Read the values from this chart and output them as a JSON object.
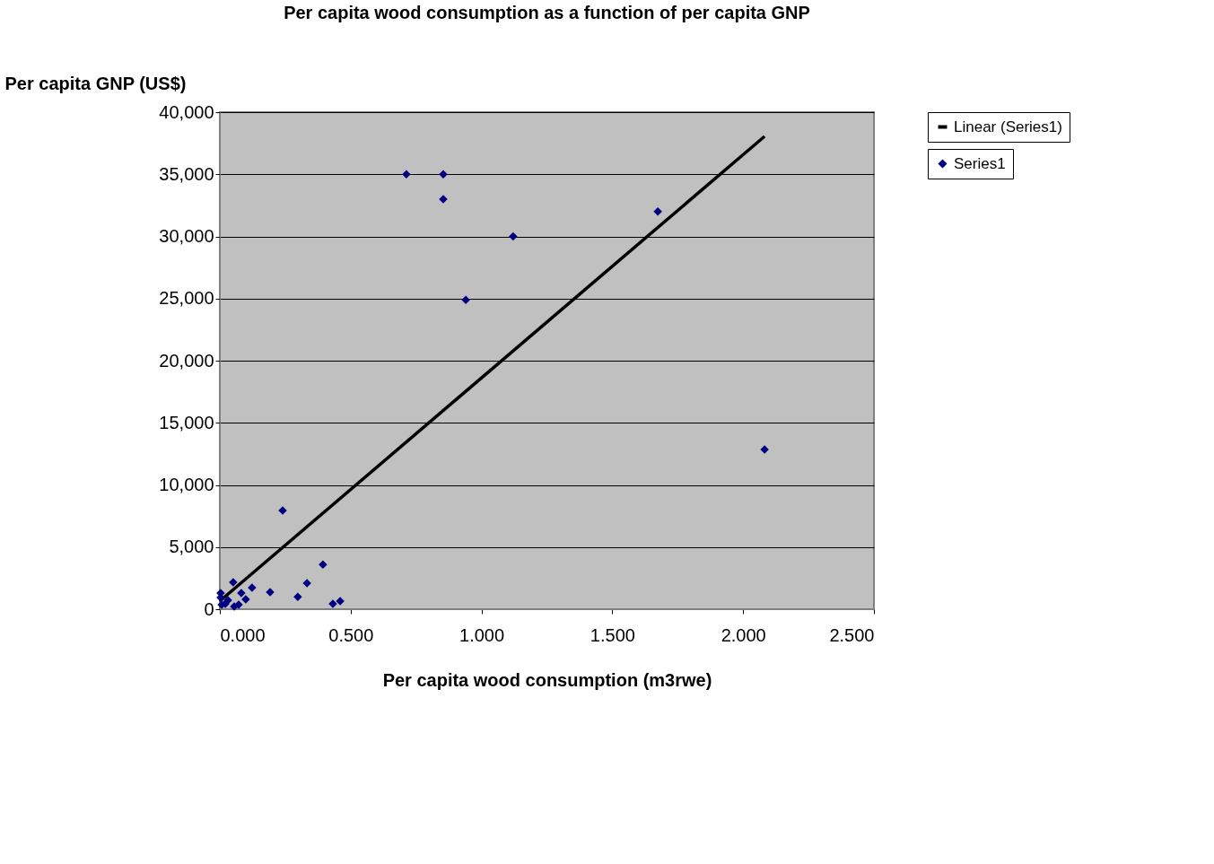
{
  "chart_data": {
    "type": "scatter",
    "title": "Per capita wood consumption as a function of per capita GNP",
    "xlabel": "Per capita wood consumption (m3rwe)",
    "ylabel": "Per capita GNP (US$)",
    "xlim": [
      0,
      2.5
    ],
    "xticks": [
      {
        "value": 0,
        "label": "0.000"
      },
      {
        "value": 0.5,
        "label": "0.500"
      },
      {
        "value": 1,
        "label": "1.000"
      },
      {
        "value": 1.5,
        "label": "1.500"
      },
      {
        "value": 2,
        "label": "2.000"
      },
      {
        "value": 2.5,
        "label": "2.500"
      }
    ],
    "ylim": [
      0,
      40000
    ],
    "yticks": [
      {
        "value": 0,
        "label": "0"
      },
      {
        "value": 5000,
        "label": "5,000"
      },
      {
        "value": 10000,
        "label": "10,000"
      },
      {
        "value": 15000,
        "label": "15,000"
      },
      {
        "value": 20000,
        "label": "20,000"
      },
      {
        "value": 25000,
        "label": "25,000"
      },
      {
        "value": 30000,
        "label": "30,000"
      },
      {
        "value": 35000,
        "label": "35,000"
      },
      {
        "value": 40000,
        "label": "40,000"
      }
    ],
    "grid": "y",
    "legend": "top right",
    "marker": "diamond",
    "series": [
      {
        "name": "Series1",
        "color": "#000080",
        "x": [
          0.713,
          0.854,
          0.854,
          0.94,
          1.121,
          1.674,
          2.082,
          0.24,
          0.394,
          0.333,
          0.298,
          0.192,
          0.123,
          0.051,
          0.432,
          0.46,
          0.099,
          0.082,
          0.003,
          0.003,
          0.021,
          0.055,
          0.072,
          0.031,
          0.007
        ],
        "values": [
          35000,
          35000,
          33000,
          24900,
          30000,
          32000,
          12850,
          7950,
          3600,
          2100,
          1000,
          1370,
          1730,
          2170,
          430,
          650,
          800,
          1300,
          1300,
          940,
          430,
          220,
          360,
          720,
          360
        ]
      },
      {
        "name": "Linear (Series1)",
        "color": "#000000",
        "type": "line",
        "line_style": "solid",
        "marker": "none",
        "x": [
          0,
          2.082
        ],
        "values": [
          650,
          38050
        ]
      }
    ]
  }
}
